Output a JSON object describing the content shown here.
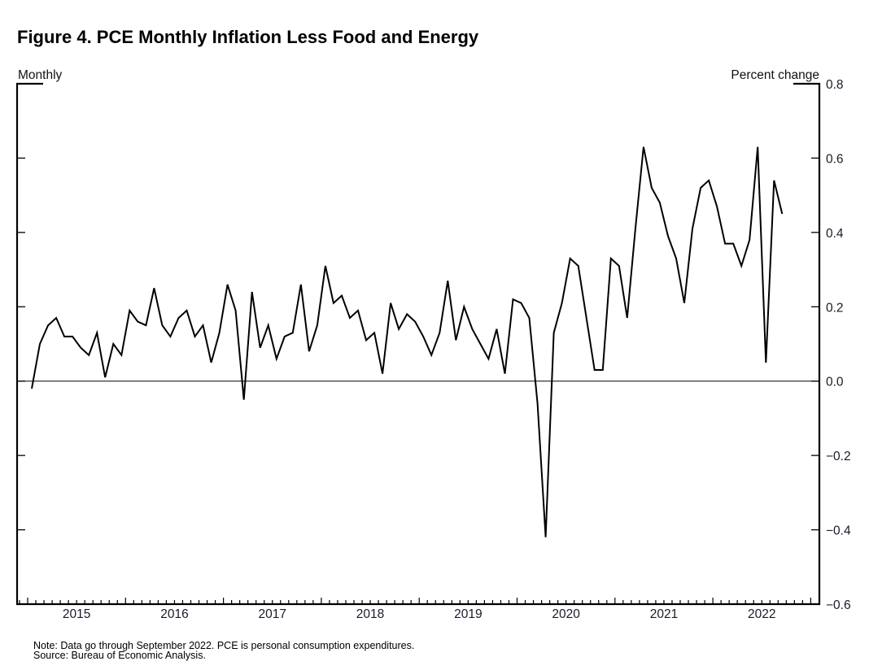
{
  "chart_data": {
    "type": "line",
    "title": "Figure 4. PCE Monthly Inflation Less Food and Energy",
    "left_unit_label": "Monthly",
    "right_unit_label": "Percent change",
    "xlabel": "",
    "ylabel": "Percent change",
    "ylim": [
      -0.6,
      0.8
    ],
    "yticks": [
      0.8,
      0.6,
      0.4,
      0.2,
      0.0,
      -0.2,
      -0.4,
      -0.6
    ],
    "ytick_labels": [
      "0.8",
      "0.6",
      "0.4",
      "0.2",
      "0.0",
      "−0.2",
      "−0.4",
      "−0.6"
    ],
    "y_axis_side": "right",
    "x_start": "2015-01",
    "x_end": "2022-09",
    "x_frequency": "monthly",
    "xtick_labels": [
      "2015",
      "2016",
      "2017",
      "2018",
      "2019",
      "2020",
      "2021",
      "2022"
    ],
    "zero_line": true,
    "grid": false,
    "legend": "none",
    "series": [
      {
        "name": "PCE less food and energy, monthly percent change",
        "color": "#000000",
        "values": [
          -0.02,
          0.1,
          0.15,
          0.17,
          0.12,
          0.12,
          0.09,
          0.07,
          0.13,
          0.01,
          0.1,
          0.07,
          0.19,
          0.16,
          0.15,
          0.25,
          0.15,
          0.12,
          0.17,
          0.19,
          0.12,
          0.15,
          0.05,
          0.13,
          0.26,
          0.19,
          -0.05,
          0.24,
          0.09,
          0.15,
          0.06,
          0.12,
          0.13,
          0.26,
          0.08,
          0.15,
          0.31,
          0.21,
          0.23,
          0.17,
          0.19,
          0.11,
          0.13,
          0.02,
          0.21,
          0.14,
          0.18,
          0.16,
          0.12,
          0.07,
          0.13,
          0.27,
          0.11,
          0.2,
          0.14,
          0.1,
          0.06,
          0.14,
          0.02,
          0.22,
          0.21,
          0.17,
          -0.06,
          -0.42,
          0.13,
          0.21,
          0.33,
          0.31,
          0.17,
          0.03,
          0.03,
          0.33,
          0.31,
          0.17,
          0.41,
          0.63,
          0.52,
          0.48,
          0.39,
          0.33,
          0.21,
          0.41,
          0.52,
          0.54,
          0.47,
          0.37,
          0.37,
          0.31,
          0.38,
          0.63,
          0.05,
          0.54,
          0.45
        ]
      }
    ]
  },
  "footnotes": {
    "note": "Note: Data go through September 2022. PCE is personal consumption expenditures.",
    "source": "Source: Bureau of Economic Analysis."
  }
}
